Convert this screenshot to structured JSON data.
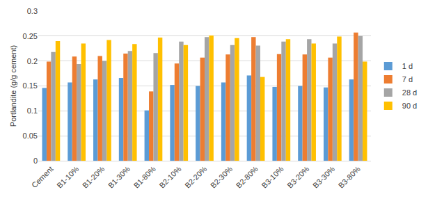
{
  "chart_data": {
    "type": "bar",
    "y_label": "Portlandite (g/g cement)",
    "categories": [
      "Cement",
      "B1-10%",
      "B1-20%",
      "B1-30%",
      "B1-80%",
      "B2-10%",
      "B2-20%",
      "B2-30%",
      "B2-80%",
      "B3-10%",
      "B3-20%",
      "B3-30%",
      "B3-80%"
    ],
    "series": [
      {
        "name": "1 d",
        "color": "#5B9BD5",
        "values": [
          0.146,
          0.157,
          0.163,
          0.166,
          0.101,
          0.152,
          0.15,
          0.157,
          0.171,
          0.148,
          0.15,
          0.147,
          0.163
        ]
      },
      {
        "name": "7 d",
        "color": "#ED7D31",
        "values": [
          0.199,
          0.209,
          0.21,
          0.215,
          0.139,
          0.195,
          0.207,
          0.213,
          0.248,
          0.214,
          0.213,
          0.207,
          0.257
        ]
      },
      {
        "name": "28 d",
        "color": "#A5A5A5",
        "values": [
          0.218,
          0.194,
          0.2,
          0.22,
          0.216,
          0.239,
          0.248,
          0.232,
          0.231,
          0.239,
          0.244,
          0.235,
          0.25
        ]
      },
      {
        "name": "90 d",
        "color": "#FFC000",
        "values": [
          0.24,
          0.235,
          0.242,
          0.234,
          0.247,
          0.232,
          0.251,
          0.246,
          0.168,
          0.244,
          0.235,
          0.249,
          0.199
        ]
      }
    ],
    "ylim": [
      0,
      0.3
    ],
    "yticks": [
      0,
      0.05,
      0.1,
      0.15,
      0.2,
      0.25,
      0.3
    ],
    "grid": true,
    "legend": "right"
  }
}
